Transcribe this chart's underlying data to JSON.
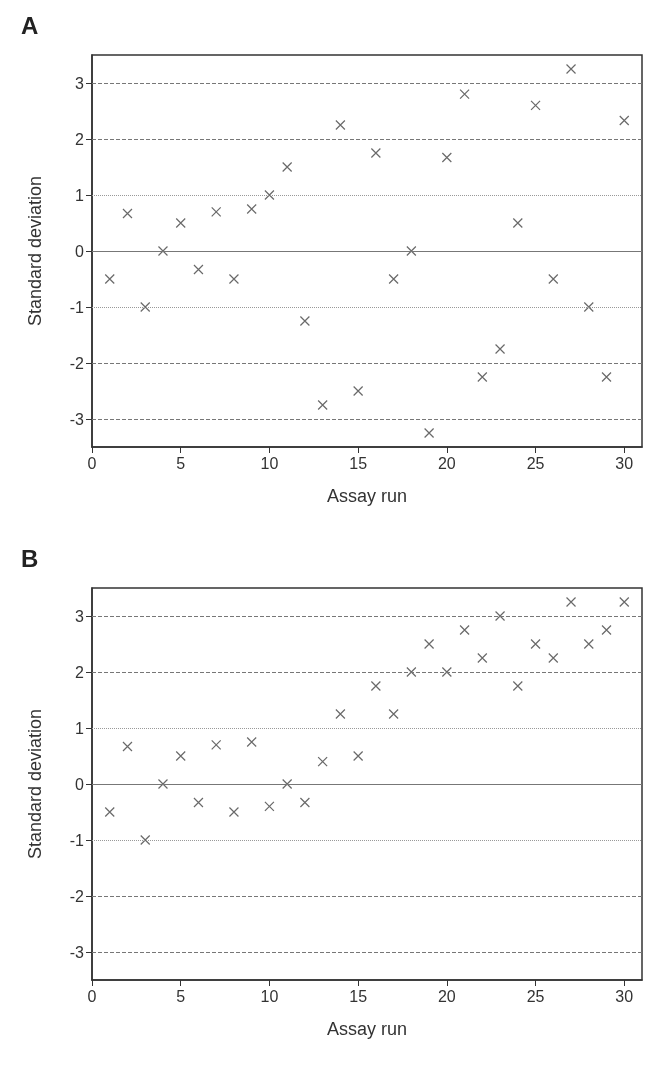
{
  "chart_data": [
    {
      "type": "scatter",
      "title": "A",
      "xlabel": "Assay run",
      "ylabel": "Standard deviation",
      "marker": "cross",
      "grid": false,
      "x": [
        1,
        2,
        3,
        4,
        5,
        6,
        7,
        8,
        9,
        10,
        11,
        12,
        13,
        14,
        15,
        16,
        17,
        18,
        19,
        20,
        21,
        22,
        23,
        24,
        25,
        26,
        27,
        28,
        29,
        30
      ],
      "series": [
        {
          "color": "#444444",
          "values": [
            -0.5,
            0.67,
            -1,
            0,
            0.5,
            -0.33,
            0.7,
            -0.5,
            0.75,
            1,
            1.5,
            -1.25,
            -2.75,
            2.25,
            -2.5,
            1.75,
            -0.5,
            0,
            -3.25,
            1.67,
            2.8,
            -2.25,
            -1.75,
            0.5,
            2.6,
            -0.5,
            3.25,
            -1,
            -2.25,
            2.33
          ]
        }
      ],
      "xlim": [
        0,
        31
      ],
      "xticks": [
        0,
        5,
        10,
        15,
        20,
        25,
        30
      ],
      "ylim": [
        -3.5,
        3.5
      ],
      "yticks": [
        -3,
        -2,
        -1,
        0,
        1,
        2,
        3
      ],
      "ref_lines": [
        {
          "axis": "y",
          "value": 3,
          "line_style": "dashed",
          "color": "#777777"
        },
        {
          "axis": "y",
          "value": 2,
          "line_style": "dashed",
          "color": "#777777"
        },
        {
          "axis": "y",
          "value": 1,
          "line_style": "dotted",
          "color": "#999999"
        },
        {
          "axis": "y",
          "value": 0,
          "line_style": "solid",
          "color": "#777777"
        },
        {
          "axis": "y",
          "value": -1,
          "line_style": "dotted",
          "color": "#999999"
        },
        {
          "axis": "y",
          "value": -2,
          "line_style": "dashed",
          "color": "#777777"
        },
        {
          "axis": "y",
          "value": -3,
          "line_style": "dashed",
          "color": "#777777"
        }
      ]
    },
    {
      "type": "scatter",
      "title": "B",
      "xlabel": "Assay run",
      "ylabel": "Standard deviation",
      "marker": "cross",
      "grid": false,
      "x": [
        1,
        2,
        3,
        4,
        5,
        6,
        7,
        8,
        9,
        10,
        11,
        12,
        13,
        14,
        15,
        16,
        17,
        18,
        19,
        20,
        21,
        22,
        23,
        24,
        25,
        26,
        27,
        28,
        29,
        30
      ],
      "series": [
        {
          "color": "#444444",
          "values": [
            -0.5,
            0.67,
            -1,
            0,
            0.5,
            -0.33,
            0.7,
            -0.5,
            0.75,
            -0.4,
            0,
            -0.33,
            0.4,
            1.25,
            0.5,
            1.75,
            1.25,
            2,
            2.5,
            2,
            2.75,
            2.25,
            3,
            1.75,
            2.5,
            2.25,
            3.25,
            2.5,
            2.75,
            3.25
          ]
        }
      ],
      "xlim": [
        0,
        31
      ],
      "xticks": [
        0,
        5,
        10,
        15,
        20,
        25,
        30
      ],
      "ylim": [
        -3.5,
        3.5
      ],
      "yticks": [
        -3,
        -2,
        -1,
        0,
        1,
        2,
        3
      ],
      "ref_lines": [
        {
          "axis": "y",
          "value": 3,
          "line_style": "dashed",
          "color": "#777777"
        },
        {
          "axis": "y",
          "value": 2,
          "line_style": "dashed",
          "color": "#777777"
        },
        {
          "axis": "y",
          "value": 1,
          "line_style": "dotted",
          "color": "#999999"
        },
        {
          "axis": "y",
          "value": 0,
          "line_style": "solid",
          "color": "#777777"
        },
        {
          "axis": "y",
          "value": -1,
          "line_style": "dotted",
          "color": "#999999"
        },
        {
          "axis": "y",
          "value": -2,
          "line_style": "dashed",
          "color": "#777777"
        },
        {
          "axis": "y",
          "value": -3,
          "line_style": "dashed",
          "color": "#777777"
        }
      ]
    }
  ]
}
